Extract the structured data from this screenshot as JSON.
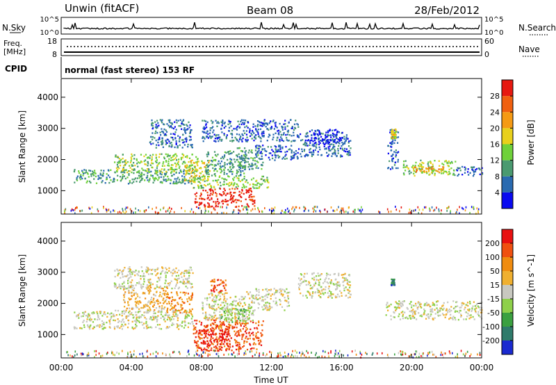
{
  "header": {
    "station": "Unwin (fitACF)",
    "beam": "Beam 08",
    "date": "28/Feb/2012"
  },
  "top_panels": {
    "nsky_label": "N.Sky",
    "nsearch_label": "N.Search",
    "noise_ticks_left": [
      "10^5",
      "10^0"
    ],
    "noise_ticks_right": [
      "10^5",
      "10^0"
    ],
    "freq_label": "Freq.",
    "freq_unit": "[MHz]",
    "freq_ticks": [
      "18",
      "8"
    ],
    "nave_label": "Nave",
    "nave_ticks": [
      "60",
      "0"
    ],
    "cpid_label": "CPID",
    "cpid_value": "normal (fast stereo) 153 RF"
  },
  "chart_data": [
    {
      "type": "heatmap",
      "name": "power",
      "ylabel": "Slant Range [km]",
      "ylim": [
        250,
        4600
      ],
      "yticks": [
        "1000",
        "2000",
        "3000",
        "4000"
      ],
      "xlim": [
        0,
        24
      ],
      "colorbar": {
        "label": "Power [dB]",
        "ticks": [
          "4",
          "8",
          "12",
          "16",
          "20",
          "24",
          "28"
        ],
        "colors": [
          "#0a0af0",
          "#2a6ab0",
          "#4a9a70",
          "#6fd13a",
          "#e8d01c",
          "#f59a14",
          "#f06010",
          "#e61810"
        ]
      },
      "regions": [
        {
          "t": [
            0.7,
            7.5
          ],
          "r": [
            1250,
            1700
          ],
          "level": 2
        },
        {
          "t": [
            3.0,
            7.8
          ],
          "r": [
            1600,
            2200
          ],
          "level": 3
        },
        {
          "t": [
            5.0,
            7.5
          ],
          "r": [
            2400,
            3300
          ],
          "level": 1
        },
        {
          "t": [
            8.0,
            13.5
          ],
          "r": [
            2600,
            3300
          ],
          "level": 1
        },
        {
          "t": [
            7.0,
            8.5
          ],
          "r": [
            1300,
            2000
          ],
          "level": 4
        },
        {
          "t": [
            7.5,
            11.8
          ],
          "r": [
            1100,
            1500
          ],
          "level": 3
        },
        {
          "t": [
            7.6,
            11.0
          ],
          "r": [
            500,
            1100
          ],
          "level": 7
        },
        {
          "t": [
            8.2,
            10.5
          ],
          "r": [
            1500,
            2300
          ],
          "level": 2
        },
        {
          "t": [
            10.0,
            11.5
          ],
          "r": [
            1700,
            2400
          ],
          "level": 2
        },
        {
          "t": [
            11.0,
            13.5
          ],
          "r": [
            2000,
            2500
          ],
          "level": 1
        },
        {
          "t": [
            13.5,
            16.5
          ],
          "r": [
            2100,
            2900
          ],
          "level": 1
        },
        {
          "t": [
            14.0,
            16.0
          ],
          "r": [
            2500,
            3000
          ],
          "level": 0
        },
        {
          "t": [
            18.6,
            19.2
          ],
          "r": [
            1700,
            3000
          ],
          "level": 1
        },
        {
          "t": [
            18.8,
            19.1
          ],
          "r": [
            2700,
            3000
          ],
          "level": 4
        },
        {
          "t": [
            19.5,
            22.5
          ],
          "r": [
            1500,
            2000
          ],
          "level": 3
        },
        {
          "t": [
            20.0,
            21.8
          ],
          "r": [
            1600,
            1800
          ],
          "level": 5
        },
        {
          "t": [
            22.5,
            24.0
          ],
          "r": [
            1500,
            1800
          ],
          "level": 1
        }
      ]
    },
    {
      "type": "heatmap",
      "name": "velocity",
      "ylabel": "Slant Range [km]",
      "ylim": [
        250,
        4600
      ],
      "yticks": [
        "1000",
        "2000",
        "3000",
        "4000"
      ],
      "xlabel": "Time UT",
      "xlim": [
        0,
        24
      ],
      "xticks": [
        "00:00",
        "04:00",
        "08:00",
        "12:00",
        "16:00",
        "20:00",
        "00:00"
      ],
      "colorbar": {
        "label": "Velocity [m s^-1]",
        "ticks": [
          "200",
          "100",
          "50",
          "15",
          "-15",
          "-50",
          "-100",
          "-200"
        ],
        "colors": [
          "#1a2ad0",
          "#2f7b6b",
          "#3aa040",
          "#8ed04a",
          "#c8c8c0",
          "#f0b030",
          "#f08c10",
          "#f05010",
          "#e81010"
        ]
      },
      "regions": [
        {
          "t": [
            0.7,
            7.5
          ],
          "r": [
            1200,
            1800
          ],
          "level": 4
        },
        {
          "t": [
            3.0,
            7.5
          ],
          "r": [
            2500,
            3200
          ],
          "level": 4
        },
        {
          "t": [
            3.5,
            6.0
          ],
          "r": [
            1800,
            2600
          ],
          "level": 5
        },
        {
          "t": [
            6.0,
            7.5
          ],
          "r": [
            1700,
            2400
          ],
          "level": 6
        },
        {
          "t": [
            7.5,
            11.5
          ],
          "r": [
            500,
            1500
          ],
          "level": 7
        },
        {
          "t": [
            7.8,
            9.5
          ],
          "r": [
            500,
            1200
          ],
          "level": 8
        },
        {
          "t": [
            8.0,
            11.0
          ],
          "r": [
            1500,
            2400
          ],
          "level": 4
        },
        {
          "t": [
            9.0,
            11.0
          ],
          "r": [
            1400,
            1900
          ],
          "level": 3
        },
        {
          "t": [
            8.5,
            9.5
          ],
          "r": [
            2400,
            2800
          ],
          "level": 7
        },
        {
          "t": [
            11.0,
            13.0
          ],
          "r": [
            1800,
            2500
          ],
          "level": 4
        },
        {
          "t": [
            13.5,
            16.5
          ],
          "r": [
            2200,
            3000
          ],
          "level": 4
        },
        {
          "t": [
            18.5,
            19.5
          ],
          "r": [
            1500,
            2100
          ],
          "level": 4
        },
        {
          "t": [
            18.8,
            19.0
          ],
          "r": [
            2600,
            2800
          ],
          "level": 1
        },
        {
          "t": [
            19.5,
            24.0
          ],
          "r": [
            1500,
            2100
          ],
          "level": 4
        }
      ]
    }
  ]
}
